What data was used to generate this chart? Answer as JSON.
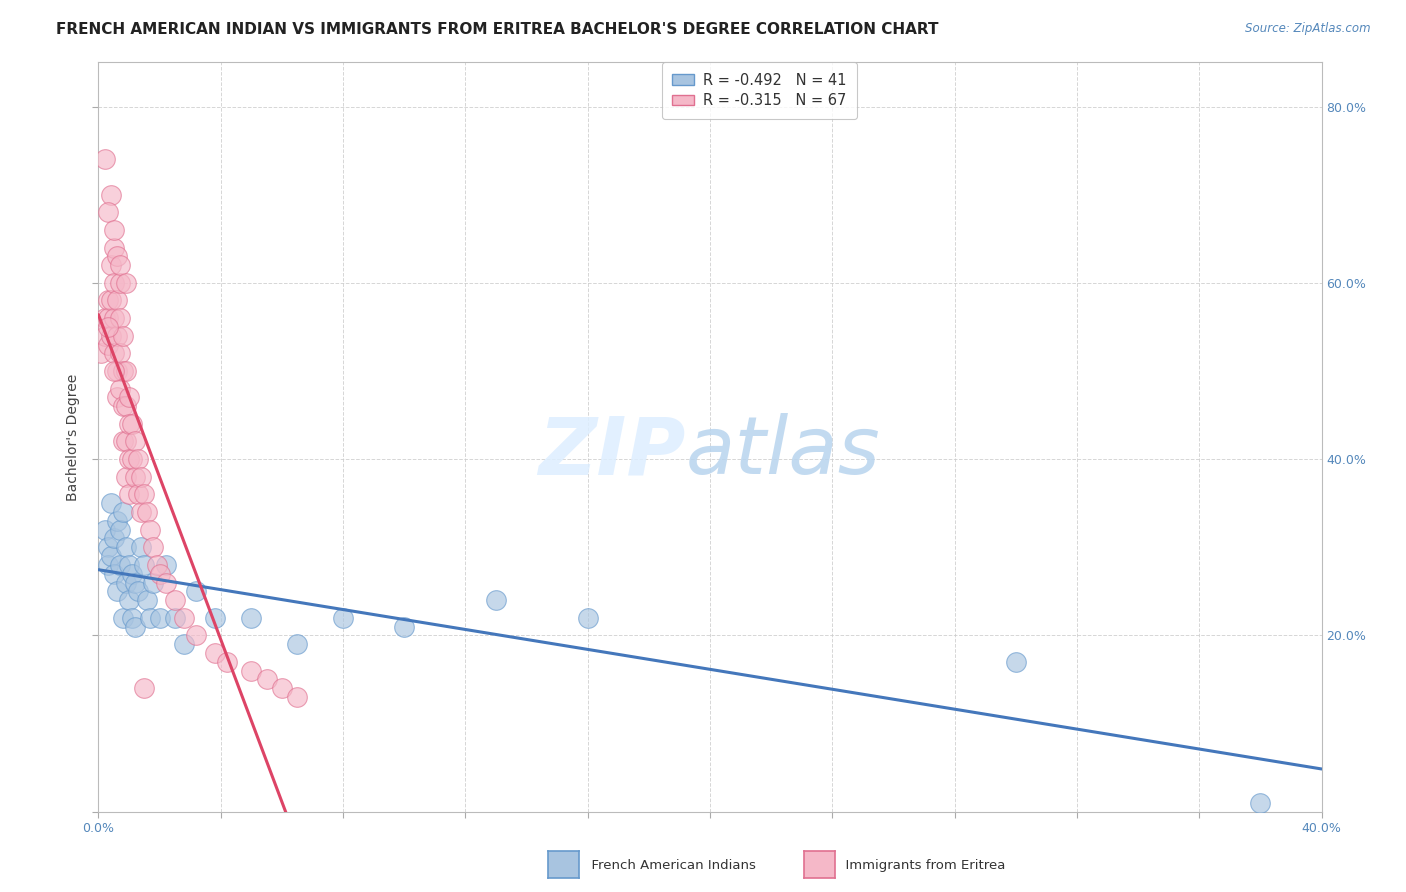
{
  "title": "FRENCH AMERICAN INDIAN VS IMMIGRANTS FROM ERITREA BACHELOR'S DEGREE CORRELATION CHART",
  "source": "Source: ZipAtlas.com",
  "ylabel": "Bachelor's Degree",
  "legend1_r": "-0.492",
  "legend1_n": "41",
  "legend2_r": "-0.315",
  "legend2_n": "67",
  "blue_color": "#a8c4e0",
  "pink_color": "#f5b8c8",
  "blue_edge_color": "#6699cc",
  "pink_edge_color": "#e07090",
  "blue_line_color": "#4477bb",
  "pink_line_color": "#dd4466",
  "background_color": "#ffffff",
  "grid_color": "#cccccc",
  "xlim": [
    0.0,
    0.4
  ],
  "ylim": [
    0.0,
    0.85
  ],
  "blue_scatter_x": [
    0.002,
    0.003,
    0.003,
    0.004,
    0.004,
    0.005,
    0.005,
    0.006,
    0.006,
    0.007,
    0.007,
    0.008,
    0.008,
    0.009,
    0.009,
    0.01,
    0.01,
    0.011,
    0.011,
    0.012,
    0.012,
    0.013,
    0.014,
    0.015,
    0.016,
    0.017,
    0.018,
    0.02,
    0.022,
    0.025,
    0.028,
    0.032,
    0.038,
    0.05,
    0.065,
    0.08,
    0.1,
    0.13,
    0.16,
    0.3,
    0.38
  ],
  "blue_scatter_y": [
    0.32,
    0.3,
    0.28,
    0.35,
    0.29,
    0.31,
    0.27,
    0.33,
    0.25,
    0.32,
    0.28,
    0.34,
    0.22,
    0.3,
    0.26,
    0.28,
    0.24,
    0.27,
    0.22,
    0.26,
    0.21,
    0.25,
    0.3,
    0.28,
    0.24,
    0.22,
    0.26,
    0.22,
    0.28,
    0.22,
    0.19,
    0.25,
    0.22,
    0.22,
    0.19,
    0.22,
    0.21,
    0.24,
    0.22,
    0.17,
    0.01
  ],
  "pink_scatter_x": [
    0.001,
    0.002,
    0.002,
    0.003,
    0.003,
    0.003,
    0.004,
    0.004,
    0.004,
    0.005,
    0.005,
    0.005,
    0.005,
    0.006,
    0.006,
    0.006,
    0.006,
    0.006,
    0.007,
    0.007,
    0.007,
    0.007,
    0.008,
    0.008,
    0.008,
    0.008,
    0.009,
    0.009,
    0.009,
    0.009,
    0.01,
    0.01,
    0.01,
    0.01,
    0.011,
    0.011,
    0.012,
    0.012,
    0.013,
    0.013,
    0.014,
    0.014,
    0.015,
    0.016,
    0.017,
    0.018,
    0.019,
    0.02,
    0.022,
    0.025,
    0.028,
    0.032,
    0.038,
    0.042,
    0.05,
    0.055,
    0.06,
    0.065,
    0.004,
    0.002,
    0.003,
    0.005,
    0.007,
    0.009,
    0.003,
    0.005,
    0.015
  ],
  "pink_scatter_y": [
    0.52,
    0.56,
    0.54,
    0.58,
    0.56,
    0.53,
    0.62,
    0.58,
    0.54,
    0.64,
    0.6,
    0.56,
    0.52,
    0.63,
    0.58,
    0.54,
    0.5,
    0.47,
    0.6,
    0.56,
    0.52,
    0.48,
    0.54,
    0.5,
    0.46,
    0.42,
    0.5,
    0.46,
    0.42,
    0.38,
    0.47,
    0.44,
    0.4,
    0.36,
    0.44,
    0.4,
    0.42,
    0.38,
    0.4,
    0.36,
    0.38,
    0.34,
    0.36,
    0.34,
    0.32,
    0.3,
    0.28,
    0.27,
    0.26,
    0.24,
    0.22,
    0.2,
    0.18,
    0.17,
    0.16,
    0.15,
    0.14,
    0.13,
    0.7,
    0.74,
    0.68,
    0.66,
    0.62,
    0.6,
    0.55,
    0.5,
    0.14
  ],
  "watermark_zip_color": "#ddeeff",
  "watermark_atlas_color": "#b8d4ee",
  "title_fontsize": 11,
  "tick_fontsize": 9,
  "source_fontsize": 8.5
}
